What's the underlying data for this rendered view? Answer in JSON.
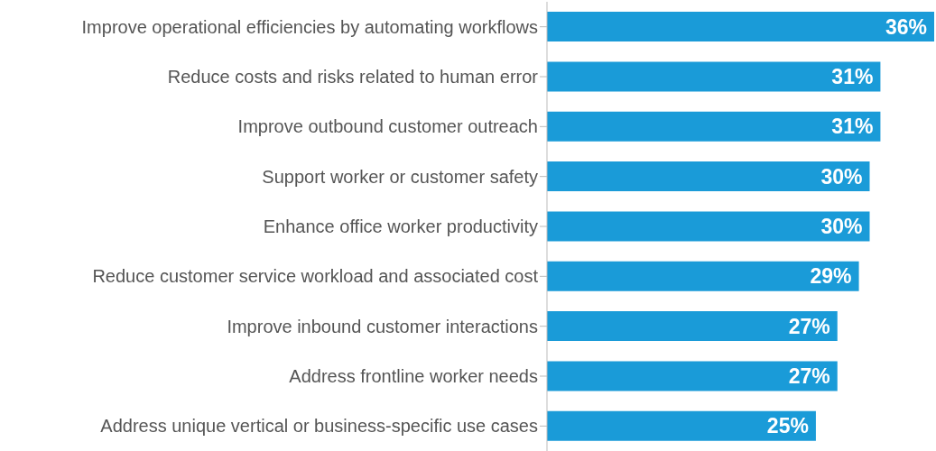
{
  "chart_data": {
    "type": "bar",
    "orientation": "horizontal",
    "categories": [
      "Improve operational efficiencies by automating workflows",
      "Reduce costs and risks related to human error",
      "Improve outbound customer outreach",
      "Support worker or customer safety",
      "Enhance office worker productivity",
      "Reduce customer service workload and associated cost",
      "Improve inbound customer interactions",
      "Address frontline worker needs",
      "Address unique vertical or business-specific use cases"
    ],
    "values": [
      36,
      31,
      31,
      30,
      30,
      29,
      27,
      27,
      25
    ],
    "value_labels": [
      "36%",
      "31%",
      "31%",
      "30%",
      "30%",
      "29%",
      "27%",
      "27%",
      "25%"
    ],
    "color": "#1a9bd8",
    "grid": false,
    "legend": false
  }
}
